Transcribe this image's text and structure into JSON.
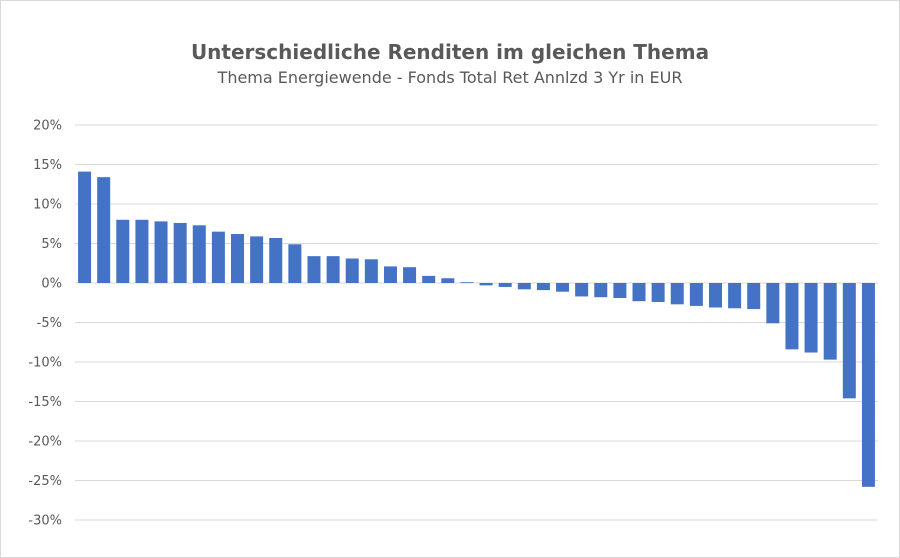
{
  "chart_data": {
    "type": "bar",
    "title": "Unterschiedliche Renditen im gleichen Thema",
    "subtitle": "Thema Energiewende - Fonds Total Ret Annlzd 3 Yr in EUR",
    "xlabel": "",
    "ylabel": "",
    "ylim": [
      -30,
      20
    ],
    "y_ticks": [
      "20%",
      "15%",
      "10%",
      "5%",
      "0%",
      "-5%",
      "-10%",
      "-15%",
      "-20%",
      "-25%",
      "-30%"
    ],
    "y_tick_values": [
      20,
      15,
      10,
      5,
      0,
      -5,
      -10,
      -15,
      -20,
      -25,
      -30
    ],
    "grid": true,
    "bar_color": "#4472C4",
    "grid_color": "#d9d9d9",
    "values": [
      14.1,
      13.4,
      8.0,
      8.0,
      7.8,
      7.6,
      7.3,
      6.5,
      6.2,
      5.9,
      5.7,
      4.9,
      3.4,
      3.4,
      3.1,
      3.0,
      2.1,
      2.0,
      0.9,
      0.6,
      0.1,
      -0.3,
      -0.5,
      -0.8,
      -0.9,
      -1.1,
      -1.7,
      -1.8,
      -1.9,
      -2.3,
      -2.4,
      -2.7,
      -2.9,
      -3.1,
      -3.2,
      -3.3,
      -5.1,
      -8.4,
      -8.8,
      -9.7,
      -14.6,
      -25.8
    ]
  }
}
